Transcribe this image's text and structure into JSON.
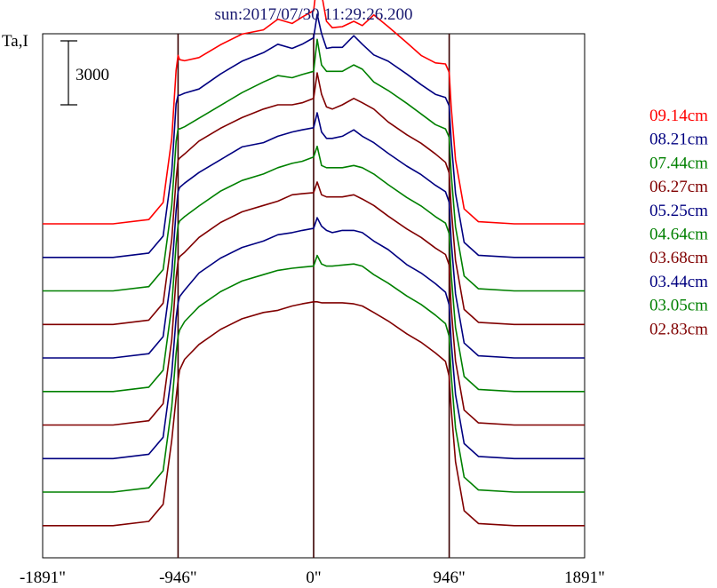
{
  "chart_data": {
    "type": "line",
    "title": "sun:2017/07/30 11:29:26.200",
    "ylabel": "Ta,I",
    "scale_bar_label": "3000",
    "xlim": [
      -1891,
      1891
    ],
    "x_ticks": [
      {
        "value": -1891,
        "label": "-1891\""
      },
      {
        "value": -946,
        "label": "-946\""
      },
      {
        "value": 0,
        "label": "0\""
      },
      {
        "value": 946,
        "label": "946\""
      },
      {
        "value": 1891,
        "label": "1891\""
      }
    ],
    "vertical_markers": [
      -946,
      0,
      946
    ],
    "legend_position": "right",
    "x": [
      -1891,
      -1400,
      -1150,
      -1050,
      -990,
      -960,
      -946,
      -935,
      -900,
      -800,
      -650,
      -500,
      -350,
      -250,
      -150,
      -80,
      0,
      25,
      55,
      90,
      130,
      200,
      280,
      340,
      420,
      520,
      650,
      750,
      850,
      920,
      946,
      960,
      990,
      1050,
      1150,
      1400,
      1891
    ],
    "series": [
      {
        "name": "09.14cm",
        "color": "#ff0000",
        "baseline": 0,
        "values": [
          0,
          0,
          200,
          1000,
          4000,
          7200,
          7900,
          7700,
          7650,
          7800,
          8400,
          8900,
          9100,
          9600,
          9400,
          9700,
          10000,
          11400,
          10800,
          9500,
          9200,
          9250,
          9500,
          9300,
          9800,
          9250,
          8500,
          7900,
          7550,
          7500,
          7100,
          5500,
          3000,
          700,
          100,
          0,
          0
        ]
      },
      {
        "name": "08.21cm",
        "color": "#000080",
        "baseline": 0,
        "values": [
          0,
          0,
          200,
          1000,
          4000,
          7200,
          7600,
          7600,
          7700,
          7900,
          8600,
          9200,
          9600,
          10000,
          9800,
          10000,
          10300,
          11400,
          10500,
          9800,
          9850,
          9850,
          10400,
          10000,
          9500,
          9200,
          8600,
          8100,
          7650,
          7500,
          7100,
          5500,
          3000,
          700,
          100,
          0,
          0
        ]
      },
      {
        "name": "07.44cm",
        "color": "#008000",
        "baseline": 0,
        "values": [
          0,
          0,
          200,
          1000,
          4000,
          7000,
          7600,
          7600,
          7700,
          8100,
          8700,
          9300,
          9800,
          10100,
          10000,
          10150,
          10300,
          11800,
          10600,
          10300,
          10300,
          10300,
          10600,
          10400,
          9800,
          9400,
          8800,
          8300,
          7800,
          7600,
          7200,
          5500,
          3000,
          700,
          100,
          0,
          0
        ]
      },
      {
        "name": "06.27cm",
        "color": "#800000",
        "baseline": 0,
        "values": [
          0,
          0,
          200,
          1000,
          4000,
          6800,
          7700,
          7800,
          8000,
          8600,
          9200,
          9700,
          10100,
          10300,
          10300,
          10400,
          10600,
          11800,
          10800,
          10200,
          10100,
          10300,
          10600,
          10400,
          10100,
          9500,
          8900,
          8500,
          8000,
          7600,
          7100,
          5500,
          3000,
          700,
          100,
          0,
          0
        ]
      },
      {
        "name": "05.25cm",
        "color": "#000080",
        "baseline": 0,
        "values": [
          0,
          0,
          200,
          1000,
          4000,
          6900,
          7800,
          8000,
          8200,
          8700,
          9300,
          9900,
          10100,
          10400,
          10600,
          10700,
          10800,
          11500,
          10600,
          10300,
          10300,
          10400,
          10700,
          10400,
          10100,
          9600,
          9000,
          8600,
          8100,
          7800,
          7300,
          5500,
          3000,
          700,
          100,
          0,
          0
        ]
      },
      {
        "name": "04.64cm",
        "color": "#008000",
        "baseline": 0,
        "values": [
          0,
          0,
          200,
          1000,
          4000,
          6900,
          7800,
          8000,
          8200,
          8700,
          9400,
          9900,
          10200,
          10500,
          10700,
          10800,
          11000,
          11500,
          10600,
          10500,
          10500,
          10500,
          10600,
          10500,
          10200,
          9700,
          9100,
          8700,
          8200,
          7900,
          7400,
          5500,
          3000,
          700,
          100,
          0,
          0
        ]
      },
      {
        "name": "03.68cm",
        "color": "#800000",
        "baseline": 0,
        "values": [
          0,
          0,
          200,
          1000,
          4000,
          6900,
          7700,
          7900,
          8100,
          8800,
          9500,
          10000,
          10300,
          10500,
          10800,
          10850,
          10900,
          11400,
          10800,
          10700,
          10700,
          10700,
          10800,
          10600,
          10300,
          9800,
          9200,
          8800,
          8300,
          8000,
          7500,
          5500,
          3000,
          700,
          100,
          0,
          0
        ]
      },
      {
        "name": "03.44cm",
        "color": "#000080",
        "baseline": 0,
        "values": [
          0,
          0,
          200,
          1000,
          4000,
          6600,
          7300,
          7600,
          7900,
          8700,
          9400,
          9900,
          10200,
          10500,
          10600,
          10700,
          10800,
          11300,
          10900,
          10700,
          10600,
          10700,
          10700,
          10600,
          10200,
          9800,
          9100,
          8700,
          8200,
          7800,
          7200,
          5500,
          3000,
          700,
          100,
          0,
          0
        ]
      },
      {
        "name": "03.05cm",
        "color": "#008000",
        "baseline": 0,
        "values": [
          0,
          0,
          200,
          1000,
          4000,
          6500,
          7300,
          7600,
          8000,
          8700,
          9400,
          9900,
          10200,
          10400,
          10500,
          10550,
          10600,
          11100,
          10700,
          10600,
          10600,
          10650,
          10700,
          10600,
          10200,
          9800,
          9200,
          8800,
          8300,
          7900,
          7300,
          5500,
          3000,
          700,
          100,
          0,
          0
        ]
      },
      {
        "name": "02.83cm",
        "color": "#800000",
        "baseline": 0,
        "values": [
          0,
          0,
          200,
          1000,
          4000,
          6000,
          6800,
          7300,
          7800,
          8500,
          9200,
          9700,
          10000,
          10100,
          10300,
          10400,
          10500,
          10500,
          10450,
          10450,
          10450,
          10450,
          10400,
          10300,
          10000,
          9600,
          9000,
          8600,
          8100,
          7700,
          7000,
          5500,
          3000,
          700,
          100,
          0,
          0
        ]
      }
    ],
    "trace_offset": 2000,
    "grid": false
  }
}
